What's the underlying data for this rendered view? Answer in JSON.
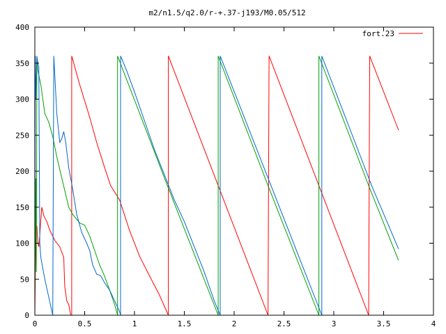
{
  "chart_data": {
    "type": "line",
    "title": "m2/n1.5/q2.0/r-+.37-j193/M0.05/512",
    "xlabel": "",
    "ylabel": "",
    "xlim": [
      0,
      4
    ],
    "ylim": [
      0,
      400
    ],
    "x_ticks": [
      0,
      0.5,
      1,
      1.5,
      2,
      2.5,
      3,
      3.5,
      4
    ],
    "x_tick_labels": [
      "0",
      "0.5",
      "1",
      "1.5",
      "2",
      "2.5",
      "3",
      "3.5",
      "4"
    ],
    "y_ticks": [
      0,
      50,
      100,
      150,
      200,
      250,
      300,
      350,
      400
    ],
    "y_tick_labels": [
      "0",
      "50",
      "100",
      "150",
      "200",
      "250",
      "300",
      "350",
      "400"
    ],
    "grid": false,
    "legend_position": "top-right",
    "series": [
      {
        "name": "fort.23",
        "color": "#ff0000",
        "points": [
          [
            0.0,
            0
          ],
          [
            0.01,
            120
          ],
          [
            0.02,
            124
          ],
          [
            0.03,
            100
          ],
          [
            0.04,
            95
          ],
          [
            0.05,
            112
          ],
          [
            0.07,
            150
          ],
          [
            0.09,
            138
          ],
          [
            0.12,
            130
          ],
          [
            0.15,
            118
          ],
          [
            0.2,
            104
          ],
          [
            0.25,
            95
          ],
          [
            0.29,
            80
          ],
          [
            0.3,
            40
          ],
          [
            0.32,
            20
          ],
          [
            0.34,
            15
          ],
          [
            0.36,
            0
          ],
          [
            0.37,
            0
          ],
          [
            0.37,
            360
          ],
          [
            0.45,
            320
          ],
          [
            0.55,
            275
          ],
          [
            0.62,
            240
          ],
          [
            0.7,
            205
          ],
          [
            0.76,
            180
          ],
          [
            0.85,
            160
          ],
          [
            0.95,
            118
          ],
          [
            1.05,
            82
          ],
          [
            1.15,
            55
          ],
          [
            1.25,
            28
          ],
          [
            1.34,
            0
          ],
          [
            1.34,
            360
          ],
          [
            1.84,
            180
          ],
          [
            2.34,
            0
          ],
          [
            2.35,
            360
          ],
          [
            2.85,
            180
          ],
          [
            3.35,
            0
          ],
          [
            3.36,
            360
          ],
          [
            3.65,
            257
          ]
        ]
      },
      {
        "name": "",
        "color": "#00a000",
        "points": [
          [
            0.0,
            20
          ],
          [
            0.01,
            190
          ],
          [
            0.015,
            60
          ],
          [
            0.02,
            355
          ],
          [
            0.03,
            340
          ],
          [
            0.06,
            320
          ],
          [
            0.1,
            280
          ],
          [
            0.14,
            268
          ],
          [
            0.18,
            248
          ],
          [
            0.22,
            220
          ],
          [
            0.28,
            185
          ],
          [
            0.34,
            150
          ],
          [
            0.38,
            140
          ],
          [
            0.45,
            128
          ],
          [
            0.5,
            125
          ],
          [
            0.55,
            110
          ],
          [
            0.6,
            90
          ],
          [
            0.65,
            70
          ],
          [
            0.7,
            54
          ],
          [
            0.75,
            35
          ],
          [
            0.8,
            15
          ],
          [
            0.83,
            0
          ],
          [
            0.83,
            360
          ],
          [
            1.33,
            180
          ],
          [
            1.84,
            0
          ],
          [
            1.84,
            360
          ],
          [
            2.34,
            180
          ],
          [
            2.85,
            0
          ],
          [
            2.85,
            360
          ],
          [
            3.35,
            180
          ],
          [
            3.65,
            76
          ]
        ]
      },
      {
        "name": "",
        "color": "#0066cc",
        "points": [
          [
            0.0,
            40
          ],
          [
            0.005,
            360
          ],
          [
            0.01,
            300
          ],
          [
            0.02,
            360
          ],
          [
            0.03,
            350
          ],
          [
            0.04,
            345
          ],
          [
            0.05,
            100
          ],
          [
            0.06,
            80
          ],
          [
            0.1,
            50
          ],
          [
            0.14,
            25
          ],
          [
            0.18,
            0
          ],
          [
            0.19,
            360
          ],
          [
            0.22,
            280
          ],
          [
            0.25,
            240
          ],
          [
            0.27,
            245
          ],
          [
            0.29,
            255
          ],
          [
            0.31,
            240
          ],
          [
            0.34,
            205
          ],
          [
            0.38,
            175
          ],
          [
            0.42,
            140
          ],
          [
            0.47,
            115
          ],
          [
            0.52,
            100
          ],
          [
            0.55,
            90
          ],
          [
            0.58,
            70
          ],
          [
            0.62,
            57
          ],
          [
            0.66,
            55
          ],
          [
            0.7,
            45
          ],
          [
            0.75,
            35
          ],
          [
            0.8,
            20
          ],
          [
            0.85,
            5
          ],
          [
            0.86,
            0
          ],
          [
            0.86,
            360
          ],
          [
            0.92,
            340
          ],
          [
            1.0,
            310
          ],
          [
            1.1,
            270
          ],
          [
            1.2,
            230
          ],
          [
            1.3,
            195
          ],
          [
            1.4,
            160
          ],
          [
            1.5,
            130
          ],
          [
            1.6,
            95
          ],
          [
            1.7,
            60
          ],
          [
            1.8,
            20
          ],
          [
            1.86,
            0
          ],
          [
            1.86,
            360
          ],
          [
            2.37,
            180
          ],
          [
            2.88,
            0
          ],
          [
            2.88,
            360
          ],
          [
            3.38,
            180
          ],
          [
            3.65,
            92
          ]
        ]
      }
    ]
  }
}
